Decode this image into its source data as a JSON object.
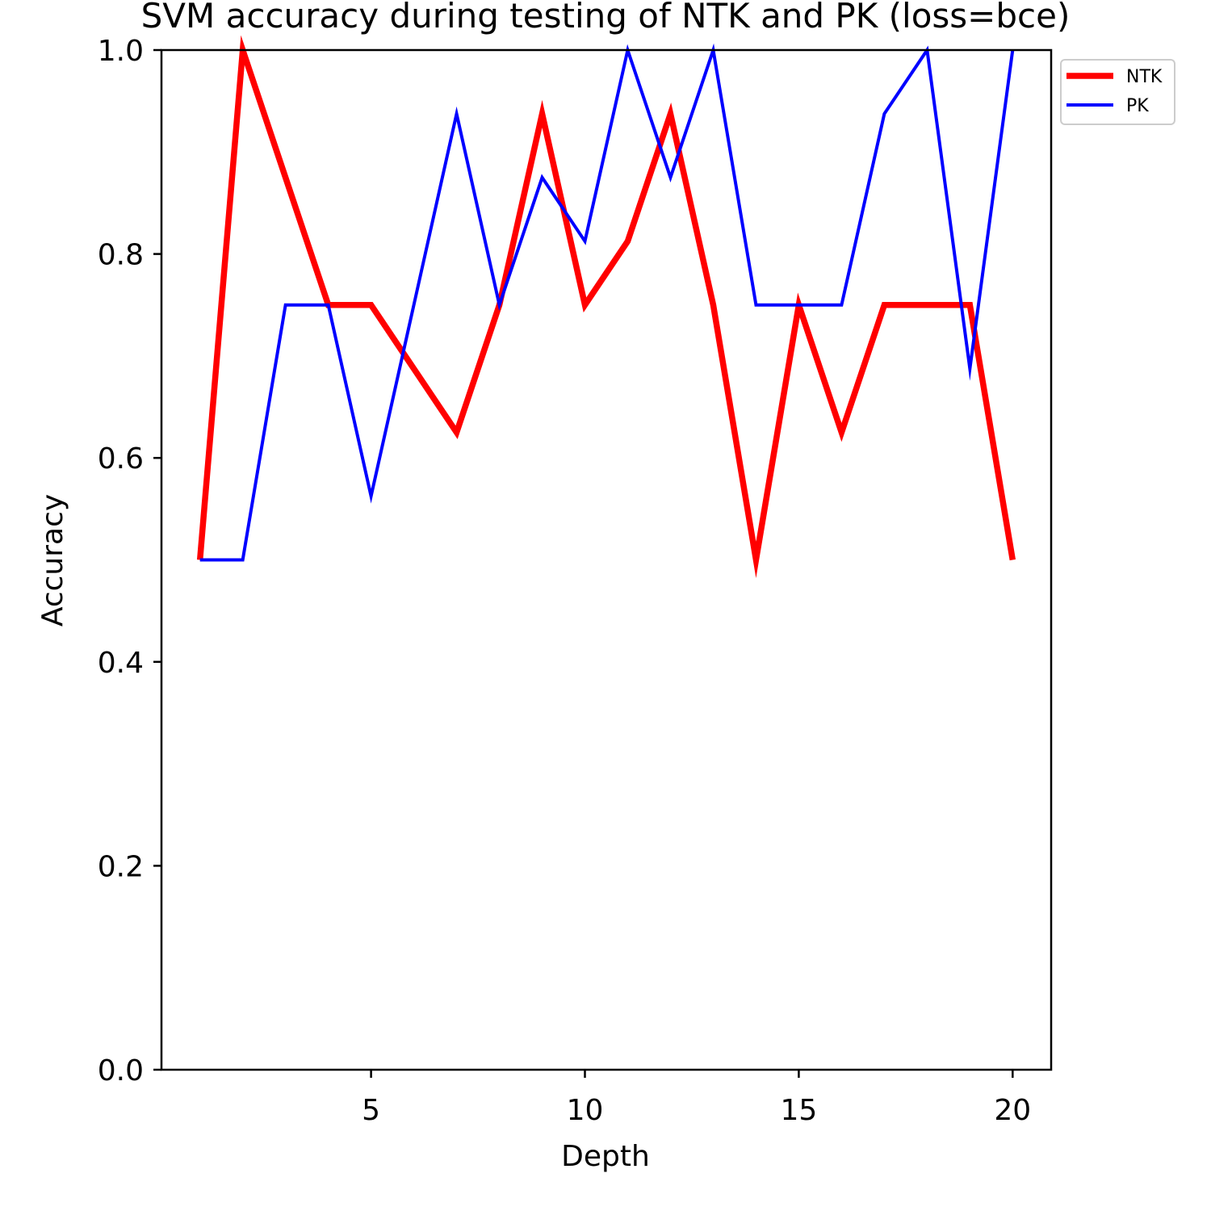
{
  "chart_data": {
    "type": "line",
    "title": "SVM accuracy during testing of NTK and PK (loss=bce)",
    "xlabel": "Depth",
    "ylabel": "Accuracy",
    "xlim": [
      0.1,
      20.9
    ],
    "ylim": [
      0.0,
      1.0
    ],
    "xticks": [
      5,
      10,
      15,
      20
    ],
    "xtick_labels": [
      "5",
      "10",
      "15",
      "20"
    ],
    "yticks": [
      0.0,
      0.2,
      0.4,
      0.6,
      0.8,
      1.0
    ],
    "ytick_labels": [
      "0.0",
      "0.2",
      "0.4",
      "0.6",
      "0.8",
      "1.0"
    ],
    "grid": false,
    "legend_position": "outside top-right",
    "x": [
      1,
      2,
      3,
      4,
      5,
      6,
      7,
      8,
      9,
      10,
      11,
      12,
      13,
      14,
      15,
      16,
      17,
      18,
      19,
      20
    ],
    "series": [
      {
        "name": "NTK",
        "color": "#ff0000",
        "values": [
          0.5,
          1.0,
          0.875,
          0.75,
          0.75,
          0.6875,
          0.625,
          0.75,
          0.9375,
          0.75,
          0.8125,
          0.9375,
          0.75,
          0.5,
          0.75,
          0.625,
          0.75,
          0.75,
          0.75,
          0.5
        ]
      },
      {
        "name": "PK",
        "color": "#0000ff",
        "values": [
          0.5,
          0.5,
          0.75,
          0.75,
          0.5625,
          0.75,
          0.9375,
          0.75,
          0.875,
          0.8125,
          1.0,
          0.875,
          1.0,
          0.75,
          0.75,
          0.75,
          0.9375,
          1.0,
          0.6875,
          1.0
        ]
      }
    ]
  }
}
